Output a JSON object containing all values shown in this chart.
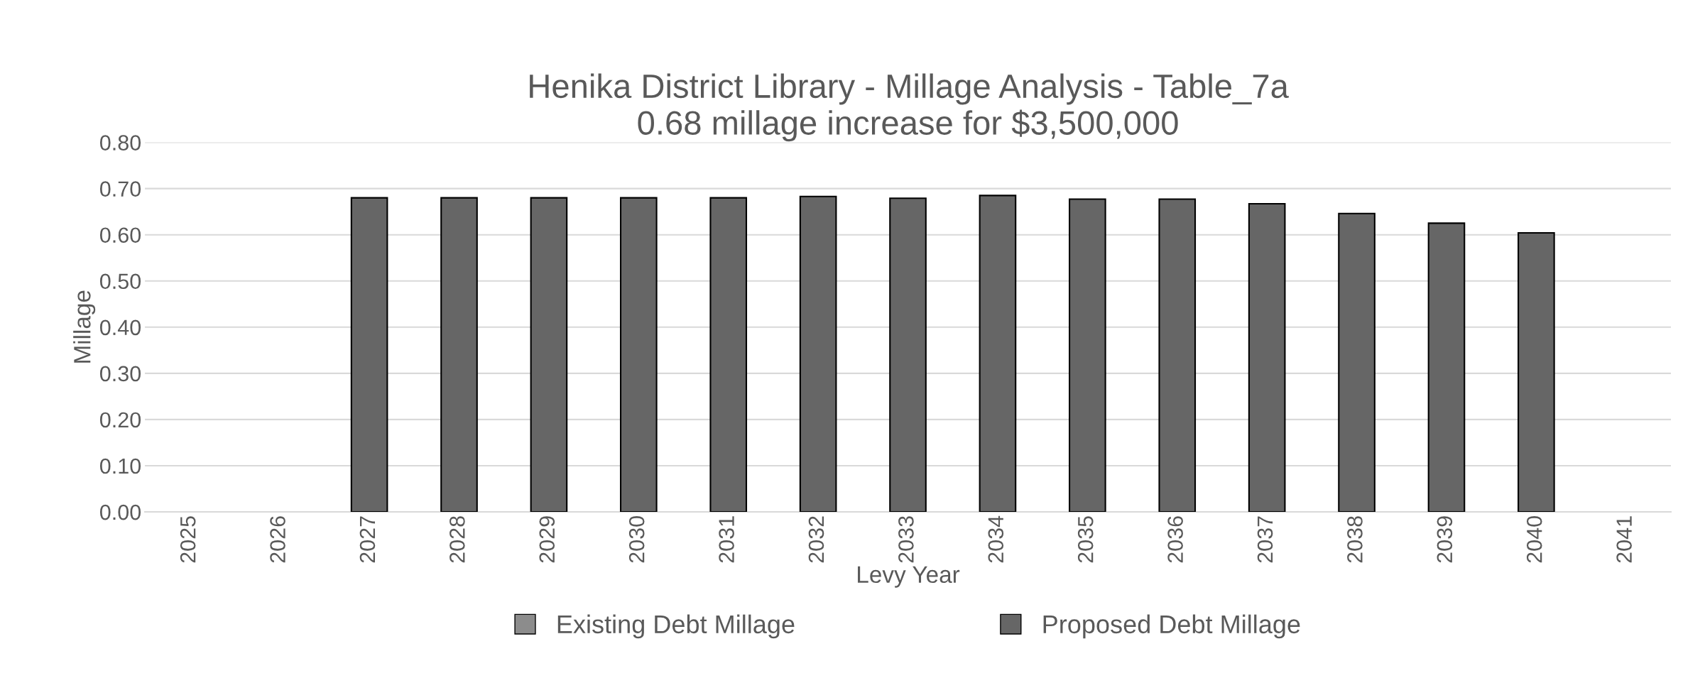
{
  "chart_data": {
    "type": "bar",
    "title": "Henika District Library - Millage Analysis - Table_7a\n0.68 millage increase for $3,500,000",
    "xlabel": "Levy Year",
    "ylabel": "Millage",
    "categories": [
      "2025",
      "2026",
      "2027",
      "2028",
      "2029",
      "2030",
      "2031",
      "2032",
      "2033",
      "2034",
      "2035",
      "2036",
      "2037",
      "2038",
      "2039",
      "2040",
      "2041"
    ],
    "series": [
      {
        "name": "Existing Debt Millage",
        "color": "#8c8c8c",
        "values": [
          null,
          null,
          null,
          null,
          null,
          null,
          null,
          null,
          null,
          null,
          null,
          null,
          null,
          null,
          null,
          null,
          null
        ]
      },
      {
        "name": "Proposed Debt Millage",
        "color": "#666666",
        "values": [
          null,
          null,
          0.68,
          0.68,
          0.68,
          0.68,
          0.68,
          0.683,
          0.679,
          0.685,
          0.677,
          0.677,
          0.667,
          0.646,
          0.625,
          0.604,
          null
        ]
      }
    ],
    "ylim": [
      0,
      0.8
    ],
    "yticks": [
      {
        "value": 0,
        "label": "0.00"
      },
      {
        "value": 0.1,
        "label": "0.10"
      },
      {
        "value": 0.2,
        "label": "0.20"
      },
      {
        "value": 0.3,
        "label": "0.30"
      },
      {
        "value": 0.4,
        "label": "0.40"
      },
      {
        "value": 0.5,
        "label": "0.50"
      },
      {
        "value": 0.6,
        "label": "0.60"
      },
      {
        "value": 0.7,
        "label": "0.70"
      },
      {
        "value": 0.8,
        "label": "0.80"
      }
    ],
    "grid": "y",
    "legend": "bottom"
  }
}
